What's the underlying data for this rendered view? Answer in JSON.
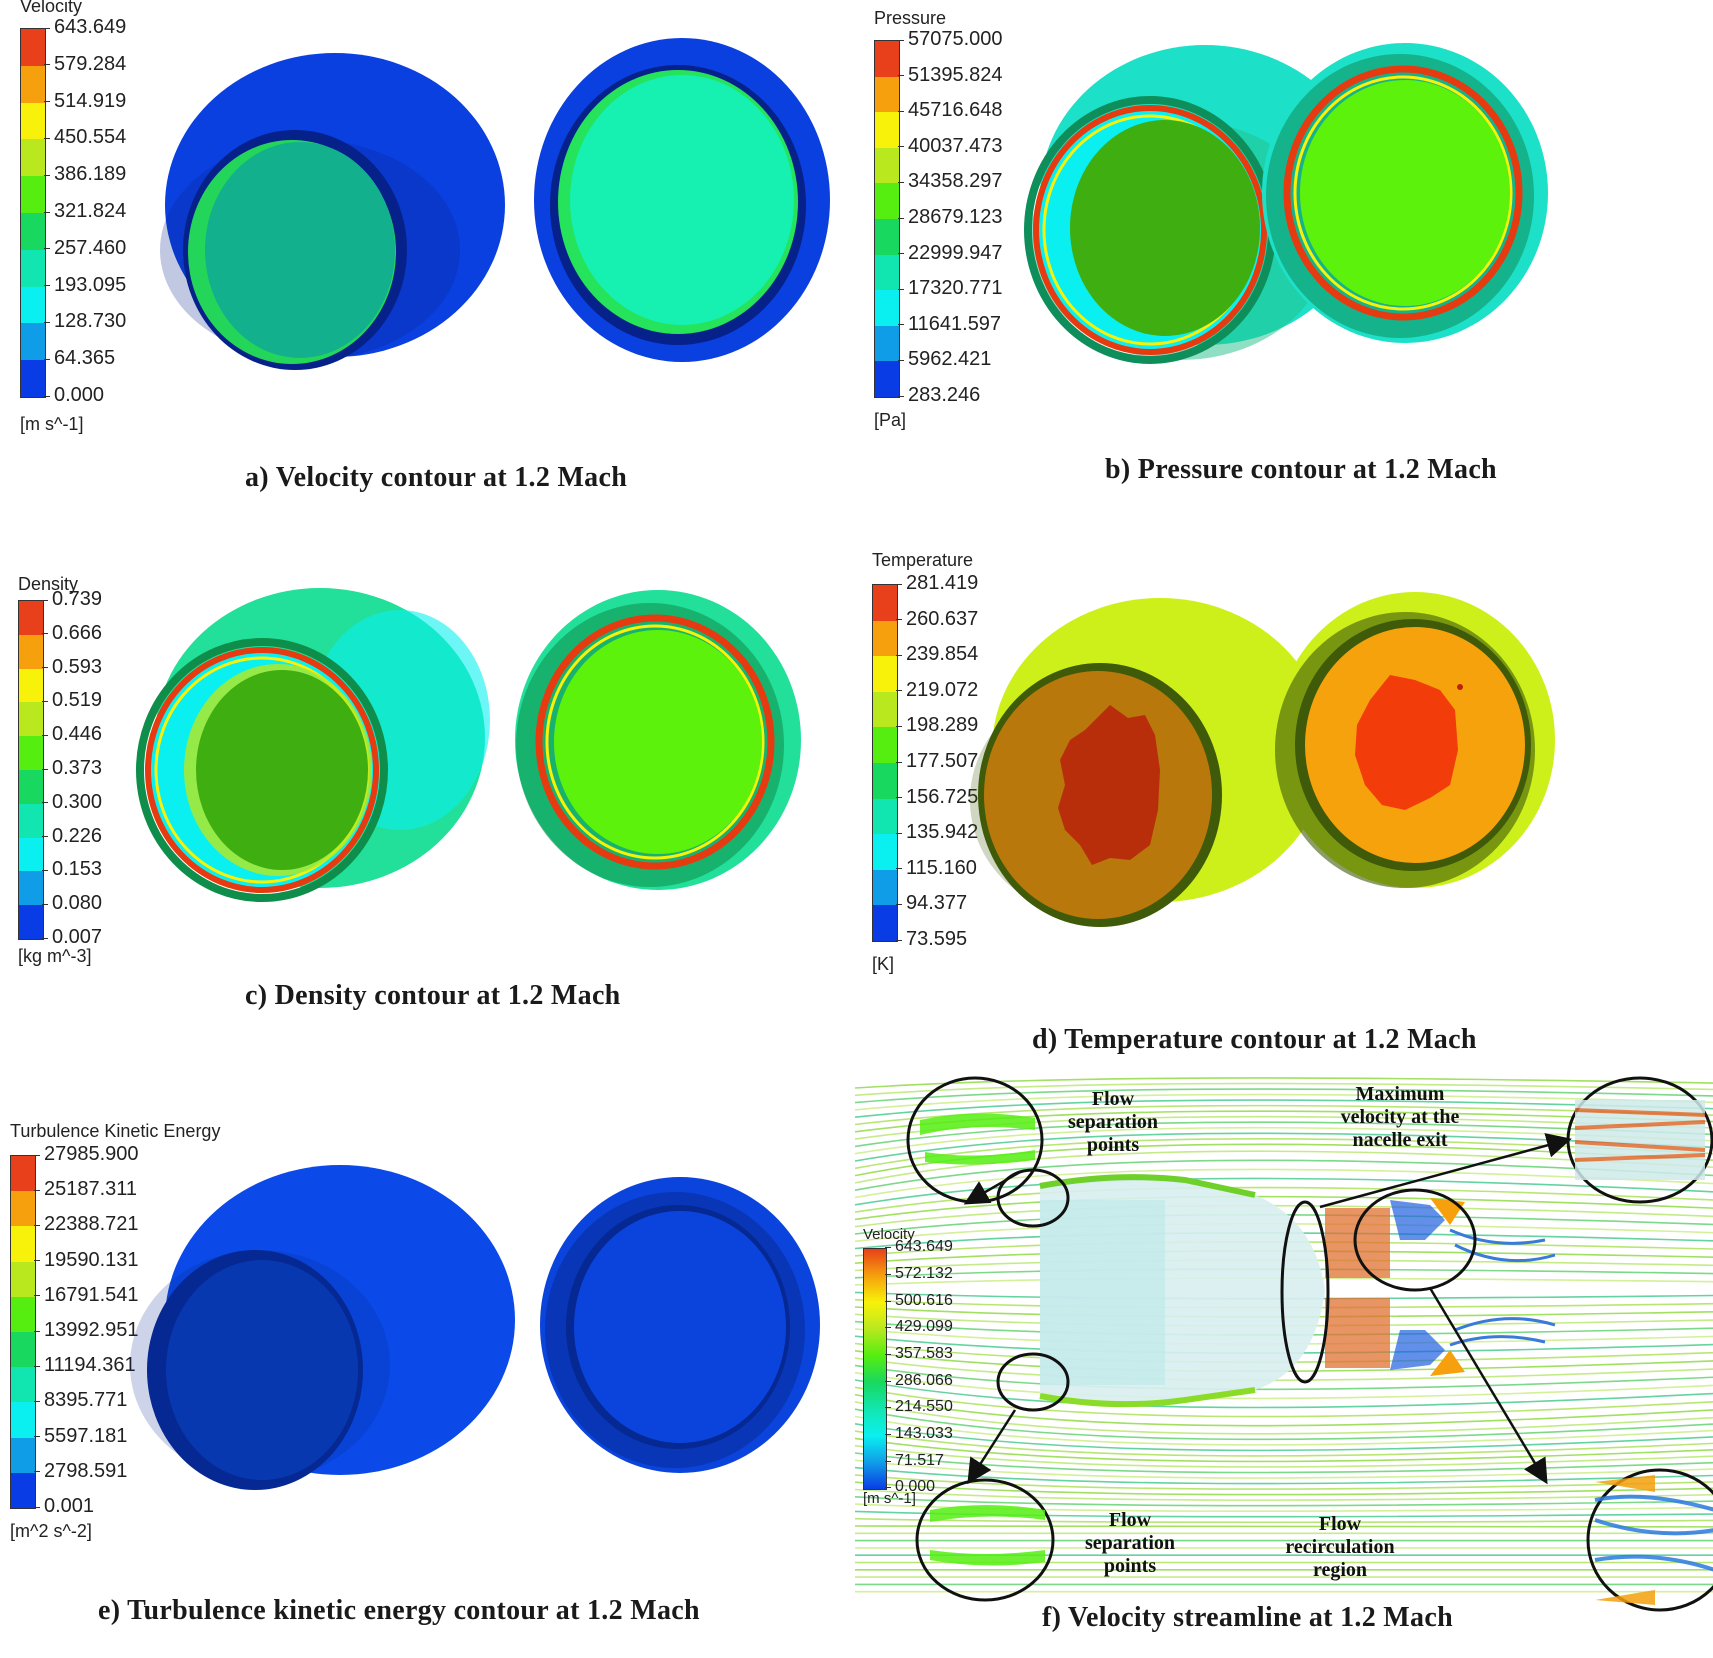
{
  "figure": {
    "panels": [
      {
        "id": "a",
        "caption": "a)  Velocity contour at 1.2 Mach",
        "legend": {
          "title": "Velocity",
          "unit": "[m s^-1]",
          "ticks": [
            "643.649",
            "579.284",
            "514.919",
            "450.554",
            "386.189",
            "321.824",
            "257.460",
            "193.095",
            "128.730",
            "64.365",
            "0.000"
          ]
        },
        "colors": {
          "shell": "#0a3fe0",
          "shell_dark": "#06228a",
          "face_left": "#12b08c",
          "face_left_rim": "#23d65a",
          "face_right": "#16f0b0",
          "face_right_rim": "#25e35a"
        }
      },
      {
        "id": "b",
        "caption": "b)  Pressure contour at 1.2 Mach",
        "legend": {
          "title": "Pressure",
          "unit": "[Pa]",
          "ticks": [
            "57075.000",
            "51395.824",
            "45716.648",
            "40037.473",
            "34358.297",
            "28679.123",
            "22999.947",
            "17320.771",
            "11641.597",
            "5962.421",
            "283.246"
          ]
        },
        "colors": {
          "shell": "#1de0c8",
          "shell_dark": "#0e8e5a",
          "ring": "#e63a10",
          "face_left": "#3fae10",
          "face_right": "#5cf20c"
        }
      },
      {
        "id": "c",
        "caption": "c)  Density contour at 1.2 Mach",
        "legend": {
          "title": "Density",
          "unit": "[kg m^-3]",
          "ticks": [
            "0.739",
            "0.666",
            "0.593",
            "0.519",
            "0.446",
            "0.373",
            "0.300",
            "0.226",
            "0.153",
            "0.080",
            "0.007"
          ]
        },
        "colors": {
          "shell": "#22e09a",
          "shell_dark": "#0e8e4a",
          "ring": "#e63a10",
          "face_left": "#3fae10",
          "face_right": "#5cf20c"
        }
      },
      {
        "id": "d",
        "caption": "d)  Temperature contour at 1.2 Mach",
        "legend": {
          "title": "Temperature",
          "unit": "[K]",
          "ticks": [
            "281.419",
            "260.637",
            "239.854",
            "219.072",
            "198.289",
            "177.507",
            "156.725",
            "135.942",
            "115.160",
            "94.377",
            "73.595"
          ]
        },
        "colors": {
          "shell": "#cdf01a",
          "shell_dark": "#3f5a08",
          "face_left": "#b8780c",
          "core_left": "#b92e0a",
          "face_right": "#f5a20c",
          "core_right": "#f23c0a"
        }
      },
      {
        "id": "e",
        "caption": "e)  Turbulence kinetic energy contour at 1.2 Mach",
        "legend": {
          "title": "Turbulence Kinetic Energy",
          "unit": "[m^2 s^-2]",
          "ticks": [
            "27985.900",
            "25187.311",
            "22388.721",
            "19590.131",
            "16791.541",
            "13992.951",
            "11194.361",
            "8395.771",
            "5597.181",
            "2798.591",
            "0.001"
          ]
        },
        "colors": {
          "shell": "#0b4ae8",
          "shell_dark": "#062892",
          "face_left": "#0838b0",
          "face_right": "#0b44dc"
        }
      },
      {
        "id": "f",
        "caption": "f)  Velocity streamline at 1.2 Mach",
        "legend": {
          "title": "Velocity",
          "unit": "[m s^-1]",
          "ticks": [
            "643.649",
            "572.132",
            "500.616",
            "429.099",
            "357.583",
            "286.066",
            "214.550",
            "143.033",
            "71.517",
            "0.000"
          ]
        },
        "annotations": {
          "top_left": [
            "Flow",
            "separation",
            "points"
          ],
          "top_right": [
            "Maximum",
            "velocity at the",
            "nacelle exit"
          ],
          "bottom_left": [
            "Flow",
            "separation",
            "points"
          ],
          "bottom_right": [
            "Flow",
            "recirculation",
            "region"
          ]
        }
      }
    ],
    "colormap": [
      "#e8401a",
      "#f5a00c",
      "#f8f20a",
      "#b9e81e",
      "#55ee10",
      "#18d860",
      "#12e6b0",
      "#0af0f0",
      "#109de8",
      "#0a3ce6"
    ]
  }
}
